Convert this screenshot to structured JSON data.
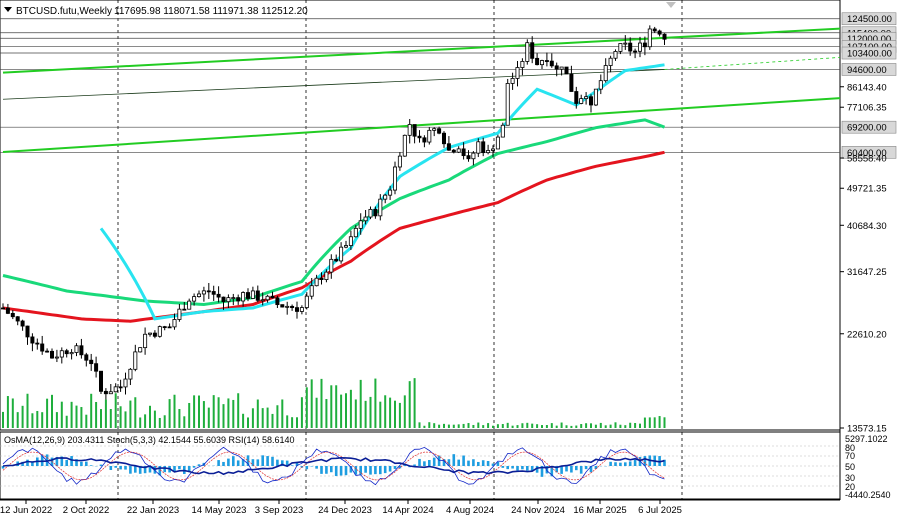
{
  "header": {
    "symbol": "BTCUSD.futu,Weekly",
    "ohlc": "117695.98 118071.58 111971.38 112512.20"
  },
  "indicator_label": "OsMA(12,26,9) 203.4311  Stoch(5,3,3) 42.1544 55.6039  RSI(14) 58.6140",
  "colors": {
    "bull": "#000000",
    "bear": "#000000",
    "ma_cyan": "#28e4f0",
    "ma_green": "#19d97a",
    "ma_red": "#e4141e",
    "channel": "#22cc22",
    "volume": "#1eae3c",
    "osma": "#1e9de0",
    "stoch_main": "#1428c8",
    "rsi": "#0a1e96"
  },
  "chart_data": {
    "type": "candlestick",
    "symbol": "BTCUSD.futu",
    "timeframe": "Weekly",
    "ylim": [
      13573.74,
      125000
    ],
    "price_labels": [
      "124500.00",
      "115400.00",
      "112000.00",
      "107100.00",
      "103400.00",
      "94600.00",
      "86143.40",
      "77106.35",
      "69200.00",
      "60400.00",
      "58558.40",
      "49721.35",
      "40684.30",
      "31647.25",
      "22610.20",
      "13573.15"
    ],
    "x_labels": [
      "12 Jun 2022",
      "2 Oct 2022",
      "22 Jan 2023",
      "14 May 2023",
      "3 Sep 2023",
      "24 Dec 2023",
      "14 Apr 2024",
      "4 Aug 2024",
      "24 Nov 2024",
      "16 Mar 2025",
      "6 Jul 2025"
    ],
    "levels": [
      124500,
      115400,
      112000,
      107100,
      103400,
      94600,
      69200,
      60400
    ],
    "price_path": [
      [
        0,
        26000
      ],
      [
        6,
        22000
      ],
      [
        10,
        20000
      ],
      [
        14,
        21000
      ],
      [
        18,
        19500
      ],
      [
        20,
        16500
      ],
      [
        24,
        17000
      ],
      [
        29,
        22500
      ],
      [
        34,
        23500
      ],
      [
        38,
        27500
      ],
      [
        42,
        28500
      ],
      [
        45,
        27000
      ],
      [
        49,
        28000
      ],
      [
        53,
        27500
      ],
      [
        56,
        26500
      ],
      [
        61,
        26000
      ],
      [
        64,
        30000
      ],
      [
        68,
        34000
      ],
      [
        71,
        37500
      ],
      [
        73,
        42000
      ],
      [
        76,
        44000
      ],
      [
        79,
        50000
      ],
      [
        81,
        61000
      ],
      [
        83,
        70500
      ],
      [
        85,
        64000
      ],
      [
        87,
        67500
      ],
      [
        89,
        69000
      ],
      [
        91,
        61000
      ],
      [
        93,
        63000
      ],
      [
        95,
        57000
      ],
      [
        97,
        63500
      ],
      [
        99,
        60000
      ],
      [
        101,
        66000
      ],
      [
        102,
        69000
      ],
      [
        103,
        88000
      ],
      [
        105,
        93000
      ],
      [
        107,
        107000
      ],
      [
        109,
        98000
      ],
      [
        111,
        102000
      ],
      [
        113,
        94000
      ],
      [
        114,
        98000
      ],
      [
        116,
        85000
      ],
      [
        117,
        80000
      ],
      [
        119,
        84000
      ],
      [
        120,
        76000
      ],
      [
        121,
        84000
      ],
      [
        123,
        94000
      ],
      [
        125,
        105000
      ],
      [
        127,
        107000
      ],
      [
        129,
        104000
      ],
      [
        131,
        110000
      ],
      [
        132,
        118000
      ],
      [
        134,
        117000
      ],
      [
        135,
        112500
      ]
    ],
    "ma_fast": [
      [
        20,
        40000
      ],
      [
        31,
        24500
      ],
      [
        41,
        25500
      ],
      [
        51,
        26000
      ],
      [
        61,
        28000
      ],
      [
        71,
        36000
      ],
      [
        81,
        53000
      ],
      [
        91,
        62000
      ],
      [
        101,
        67000
      ],
      [
        109,
        85000
      ],
      [
        117,
        78000
      ],
      [
        121,
        84000
      ],
      [
        127,
        94000
      ],
      [
        135,
        97000
      ]
    ],
    "ma_mid": [
      [
        0,
        31000
      ],
      [
        13,
        28500
      ],
      [
        29,
        27000
      ],
      [
        41,
        26500
      ],
      [
        51,
        27500
      ],
      [
        61,
        30000
      ],
      [
        71,
        40000
      ],
      [
        81,
        47000
      ],
      [
        91,
        52000
      ],
      [
        101,
        60000
      ],
      [
        111,
        64000
      ],
      [
        121,
        69000
      ],
      [
        131,
        72000
      ],
      [
        135,
        69200
      ]
    ],
    "ma_slow": [
      [
        0,
        26000
      ],
      [
        16,
        24500
      ],
      [
        26,
        24200
      ],
      [
        41,
        25500
      ],
      [
        51,
        26500
      ],
      [
        61,
        29000
      ],
      [
        71,
        33500
      ],
      [
        81,
        40000
      ],
      [
        91,
        43000
      ],
      [
        101,
        46000
      ],
      [
        111,
        52000
      ],
      [
        121,
        56000
      ],
      [
        131,
        59000
      ],
      [
        135,
        60400
      ]
    ],
    "channel_lines": [
      {
        "from": [
          0,
          93000
        ],
        "to": [
          171,
          118000
        ]
      },
      {
        "from": [
          0,
          60500
        ],
        "to": [
          171,
          81000
        ]
      },
      {
        "from": [
          0,
          80500
        ],
        "to": [
          135,
          94600
        ]
      },
      {
        "from": [
          135,
          94600
        ],
        "to": [
          171,
          101000
        ]
      }
    ],
    "indicator_scale": [
      "5297.1022",
      "80",
      "70",
      "50",
      "30",
      "20",
      "-4440.2540"
    ]
  }
}
